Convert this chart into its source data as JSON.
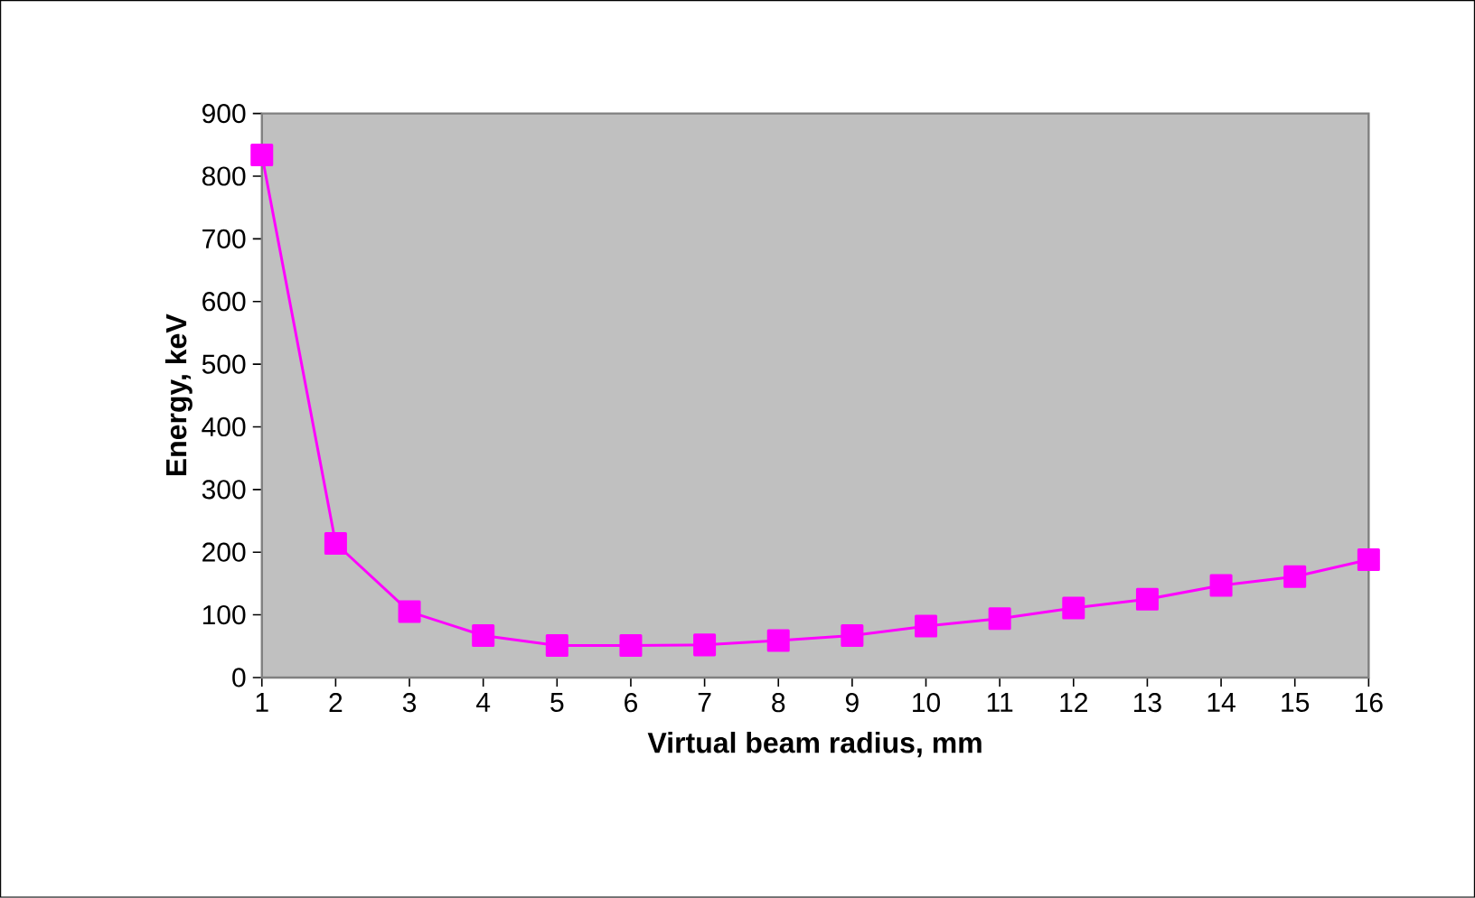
{
  "chart_data": {
    "type": "line",
    "xlabel": "Virtual beam radius, mm",
    "ylabel": "Energy, keV",
    "x": [
      1,
      2,
      3,
      4,
      5,
      6,
      7,
      8,
      9,
      10,
      11,
      12,
      13,
      14,
      15,
      16
    ],
    "series": [
      {
        "color": "#ff00ff",
        "values": [
          834,
          214,
          105,
          67,
          51,
          51,
          52,
          59,
          67,
          82,
          94,
          111,
          125,
          147,
          161,
          188
        ]
      }
    ],
    "xlim": [
      1,
      16
    ],
    "xticks": [
      1,
      2,
      3,
      4,
      5,
      6,
      7,
      8,
      9,
      10,
      11,
      12,
      13,
      14,
      15,
      16
    ],
    "ylim": [
      0,
      900
    ],
    "yticks": [
      0,
      100,
      200,
      300,
      400,
      500,
      600,
      700,
      800,
      900
    ],
    "marker": "square",
    "line_style": "solid"
  }
}
